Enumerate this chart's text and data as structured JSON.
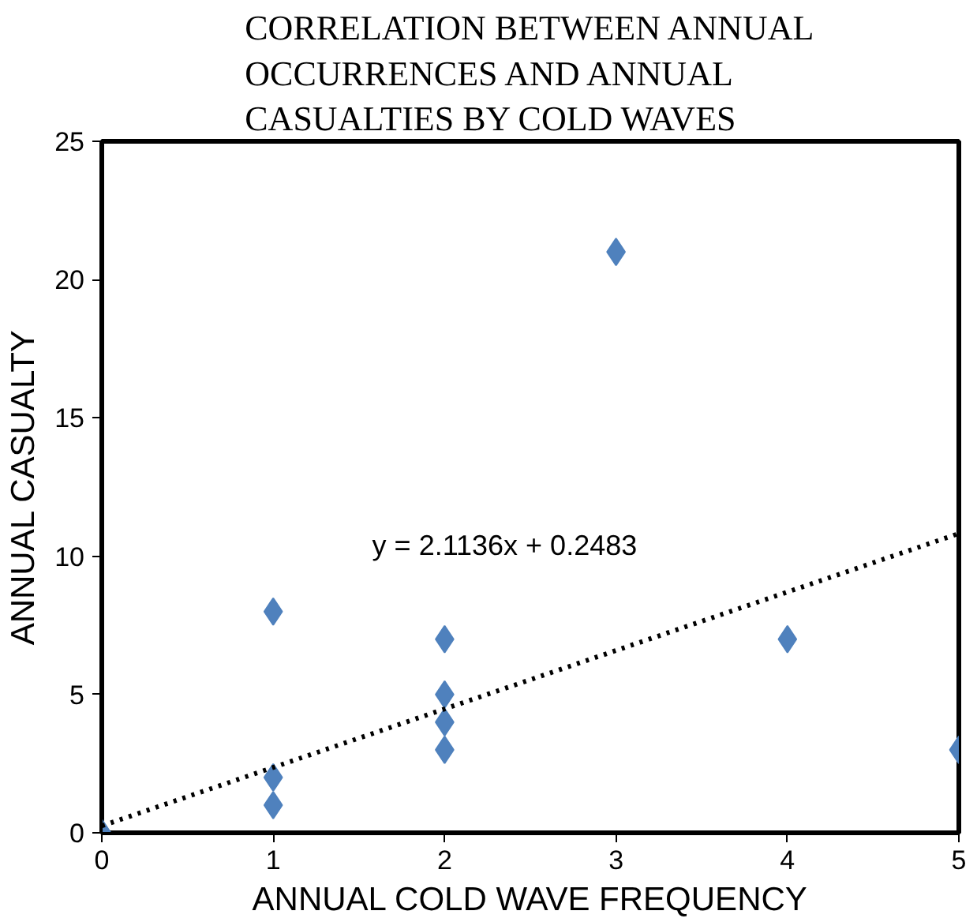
{
  "chart_data": {
    "type": "scatter",
    "title": "CORRELATION BETWEEN ANNUAL OCCURRENCES AND ANNUAL CASUALTIES BY COLD WAVES",
    "xlabel": "ANNUAL COLD WAVE FREQUENCY",
    "ylabel": "ANNUAL CASUALTY",
    "xlim": [
      0,
      5
    ],
    "ylim": [
      0,
      25
    ],
    "xticks": [
      0,
      1,
      2,
      3,
      4,
      5
    ],
    "yticks": [
      0,
      5,
      10,
      15,
      20,
      25
    ],
    "grid": false,
    "series": [
      {
        "color": "#4f81bd",
        "marker": "diamond",
        "x": [
          0,
          1,
          1,
          1,
          2,
          2,
          2,
          2,
          3,
          4,
          5
        ],
        "values": [
          0,
          8,
          2,
          1,
          7,
          5,
          4,
          3,
          21,
          7,
          3
        ]
      },
      {
        "type": "line",
        "color": "#000000",
        "marker": "none",
        "line_style": "dotted",
        "x": [
          0,
          5
        ],
        "values": [
          0.25,
          10.82
        ]
      }
    ],
    "annotations": [
      "y = 2.1136x + 0.2483"
    ]
  }
}
